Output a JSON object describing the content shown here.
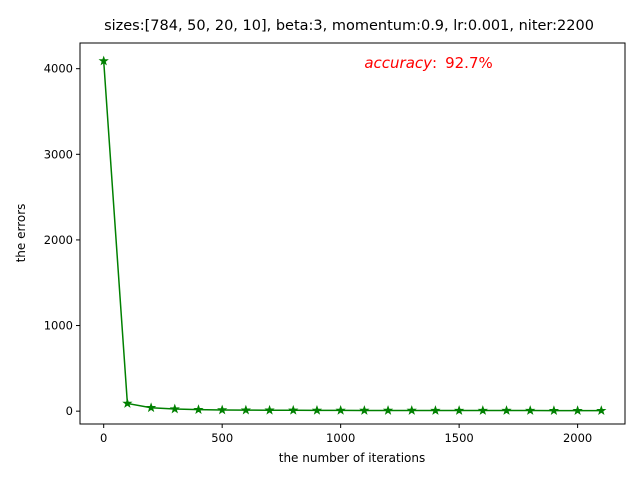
{
  "chart_data": {
    "type": "line",
    "title": "sizes:[784, 50, 20, 10], beta:3, momentum:0.9, lr:0.001, niter:2200",
    "xlabel": "the number of iterations",
    "ylabel": "the errors",
    "xlim": [
      -100,
      2200
    ],
    "ylim": [
      -150,
      4300
    ],
    "xticks": [
      0,
      500,
      1000,
      1500,
      2000
    ],
    "yticks": [
      0,
      1000,
      2000,
      3000,
      4000
    ],
    "annotation": {
      "italic_part": "accuracy",
      "separator": ":",
      "value": "92.7%",
      "x": 1100,
      "y": 4010
    },
    "grid": false,
    "colors": {
      "series": "#008000",
      "annotation": "#ff0000"
    },
    "series": [
      {
        "marker": "star",
        "x": [
          0,
          100,
          200,
          300,
          400,
          500,
          600,
          700,
          800,
          900,
          1000,
          1100,
          1200,
          1300,
          1400,
          1500,
          1600,
          1700,
          1800,
          1900,
          2000,
          2100
        ],
        "values": [
          4090,
          90,
          40,
          25,
          18,
          14,
          12,
          11,
          10,
          9,
          9,
          8,
          8,
          8,
          7,
          7,
          7,
          7,
          7,
          6,
          6,
          6
        ]
      }
    ]
  }
}
